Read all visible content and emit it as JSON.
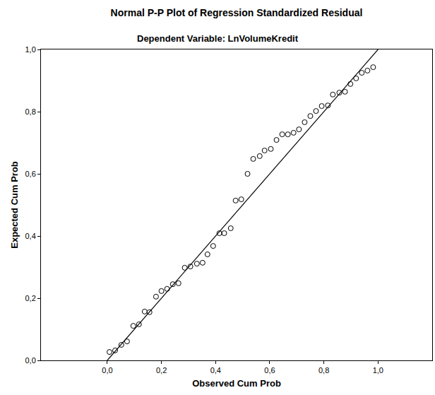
{
  "chart_data": {
    "type": "scatter",
    "title": "Normal P-P Plot of Regression Standardized Residual",
    "subtitle": "Dependent Variable: LnVolumeKredit",
    "x_label": "Observed Cum Prob",
    "y_label": "Expected Cum Prob",
    "xlim": [
      -0.245,
      1.2
    ],
    "ylim": [
      0,
      1
    ],
    "xticks": [
      {
        "value": 0,
        "label": "0,0"
      },
      {
        "value": 0.2,
        "label": "0,2"
      },
      {
        "value": 0.4,
        "label": "0,4"
      },
      {
        "value": 0.6,
        "label": "0,6"
      },
      {
        "value": 0.8,
        "label": "0,8"
      },
      {
        "value": 1,
        "label": "1,0"
      }
    ],
    "yticks": [
      {
        "value": 0,
        "label": "0,0"
      },
      {
        "value": 0.2,
        "label": "0,2"
      },
      {
        "value": 0.4,
        "label": "0,4"
      },
      {
        "value": 0.6,
        "label": "0,6"
      },
      {
        "value": 0.8,
        "label": "0,8"
      },
      {
        "value": 1,
        "label": "1,0"
      }
    ],
    "grid": false,
    "series": [
      {
        "type": "scatter",
        "marker": "circle-open",
        "color": "#000000",
        "x": [
          0.008,
          0.029,
          0.052,
          0.073,
          0.096,
          0.117,
          0.138,
          0.156,
          0.18,
          0.2,
          0.221,
          0.242,
          0.263,
          0.286,
          0.307,
          0.331,
          0.352,
          0.37,
          0.391,
          0.414,
          0.432,
          0.456,
          0.474,
          0.495,
          0.518,
          0.539,
          0.563,
          0.581,
          0.604,
          0.625,
          0.646,
          0.667,
          0.688,
          0.708,
          0.729,
          0.75,
          0.771,
          0.792,
          0.815,
          0.833,
          0.857,
          0.878,
          0.898,
          0.919,
          0.94,
          0.961,
          0.982
        ],
        "values": [
          0.027,
          0.032,
          0.05,
          0.061,
          0.111,
          0.116,
          0.157,
          0.155,
          0.205,
          0.223,
          0.23,
          0.245,
          0.248,
          0.298,
          0.302,
          0.311,
          0.314,
          0.341,
          0.368,
          0.409,
          0.409,
          0.425,
          0.514,
          0.518,
          0.6,
          0.648,
          0.657,
          0.675,
          0.68,
          0.709,
          0.727,
          0.727,
          0.732,
          0.743,
          0.766,
          0.786,
          0.802,
          0.818,
          0.82,
          0.855,
          0.861,
          0.864,
          0.889,
          0.907,
          0.925,
          0.932,
          0.943
        ]
      },
      {
        "type": "line",
        "line_style": "solid",
        "color": "#000000",
        "x": [
          0,
          1
        ],
        "values": [
          0,
          1
        ]
      }
    ]
  }
}
